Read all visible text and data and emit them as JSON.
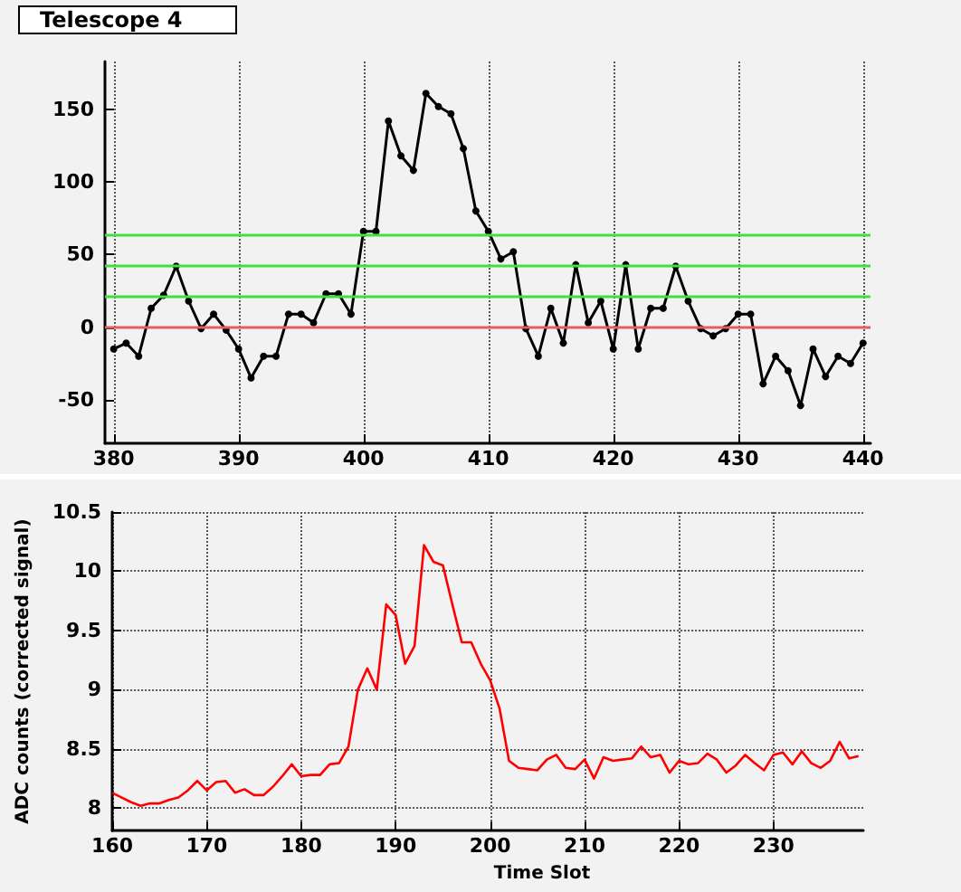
{
  "chart_data": [
    {
      "type": "line",
      "title": "Telescope 4",
      "marker": "circle",
      "grid": "x",
      "x": [
        380,
        381,
        382,
        383,
        384,
        385,
        386,
        387,
        388,
        389,
        390,
        391,
        392,
        393,
        394,
        395,
        396,
        397,
        398,
        399,
        400,
        401,
        402,
        403,
        404,
        405,
        406,
        407,
        408,
        409,
        410,
        411,
        412,
        413,
        414,
        415,
        416,
        417,
        418,
        419,
        420,
        421,
        422,
        423,
        424,
        425,
        426,
        427,
        428,
        429,
        430,
        431,
        432,
        433,
        434,
        435,
        436,
        437,
        438,
        439,
        440
      ],
      "series": [
        {
          "color": "#000000",
          "values": [
            -15,
            -11,
            -20,
            13,
            22,
            42,
            18,
            -1,
            9,
            -2,
            -15,
            -35,
            -20,
            -20,
            9,
            9,
            3,
            23,
            23,
            9,
            66,
            66,
            142,
            118,
            108,
            161,
            152,
            147,
            123,
            80,
            66,
            47,
            52,
            -1,
            -20,
            13,
            -11,
            43,
            3,
            18,
            -15,
            43,
            -15,
            13,
            13,
            42,
            18,
            -1,
            -6,
            -1,
            9,
            9,
            -39,
            -20,
            -30,
            -54,
            -15,
            -34,
            -20,
            -25,
            -11
          ]
        }
      ],
      "xlim": [
        379.3,
        440.6
      ],
      "xticks": [
        380,
        390,
        400,
        410,
        420,
        430,
        440
      ],
      "ylim": [
        -80,
        183
      ],
      "yticks": [
        -50,
        0,
        50,
        100,
        150
      ],
      "ref_lines": [
        {
          "axis": "y",
          "value": 0,
          "color": "#e06060"
        },
        {
          "axis": "y",
          "value": 21,
          "color": "#44dd44"
        },
        {
          "axis": "y",
          "value": 43,
          "color": "#44dd44"
        },
        {
          "axis": "y",
          "value": 64,
          "color": "#44dd44"
        }
      ]
    },
    {
      "type": "line",
      "xlabel": "Time Slot",
      "ylabel": "ADC counts (corrected signal)",
      "grid": true,
      "x": [
        160,
        161,
        162,
        163,
        164,
        165,
        166,
        167,
        168,
        169,
        170,
        171,
        172,
        173,
        174,
        175,
        176,
        177,
        178,
        179,
        180,
        181,
        182,
        183,
        184,
        185,
        186,
        187,
        188,
        189,
        190,
        191,
        192,
        193,
        194,
        195,
        196,
        197,
        198,
        199,
        200,
        201,
        202,
        203,
        204,
        205,
        206,
        207,
        208,
        209,
        210,
        211,
        212,
        213,
        214,
        215,
        216,
        217,
        218,
        219,
        220,
        221,
        222,
        223,
        224,
        225,
        226,
        227,
        228,
        229,
        230,
        231,
        232,
        233,
        234,
        235,
        236,
        237,
        238,
        239
      ],
      "series": [
        {
          "color": "#ff0000",
          "values": [
            8.13,
            8.09,
            8.05,
            8.02,
            8.04,
            8.04,
            8.07,
            8.09,
            8.15,
            8.23,
            8.15,
            8.22,
            8.23,
            8.13,
            8.16,
            8.11,
            8.11,
            8.18,
            8.27,
            8.37,
            8.27,
            8.28,
            8.28,
            8.37,
            8.38,
            8.52,
            9.0,
            9.18,
            9.0,
            9.72,
            9.63,
            9.22,
            9.37,
            10.22,
            10.08,
            10.05,
            9.72,
            9.4,
            9.4,
            9.22,
            9.08,
            8.84,
            8.4,
            8.34,
            8.33,
            8.32,
            8.41,
            8.45,
            8.34,
            8.33,
            8.41,
            8.25,
            8.43,
            8.4,
            8.41,
            8.42,
            8.52,
            8.43,
            8.45,
            8.3,
            8.4,
            8.37,
            8.38,
            8.46,
            8.41,
            8.3,
            8.36,
            8.45,
            8.38,
            8.32,
            8.45,
            8.47,
            8.37,
            8.48,
            8.38,
            8.34,
            8.4,
            8.56,
            8.42,
            8.44
          ]
        }
      ],
      "xlim": [
        160,
        239.5
      ],
      "xticks": [
        160,
        170,
        180,
        190,
        200,
        210,
        220,
        230
      ],
      "ylim": [
        7.81,
        10.5
      ],
      "yticks": [
        8,
        8.5,
        9,
        9.5,
        10,
        10.5
      ]
    }
  ]
}
